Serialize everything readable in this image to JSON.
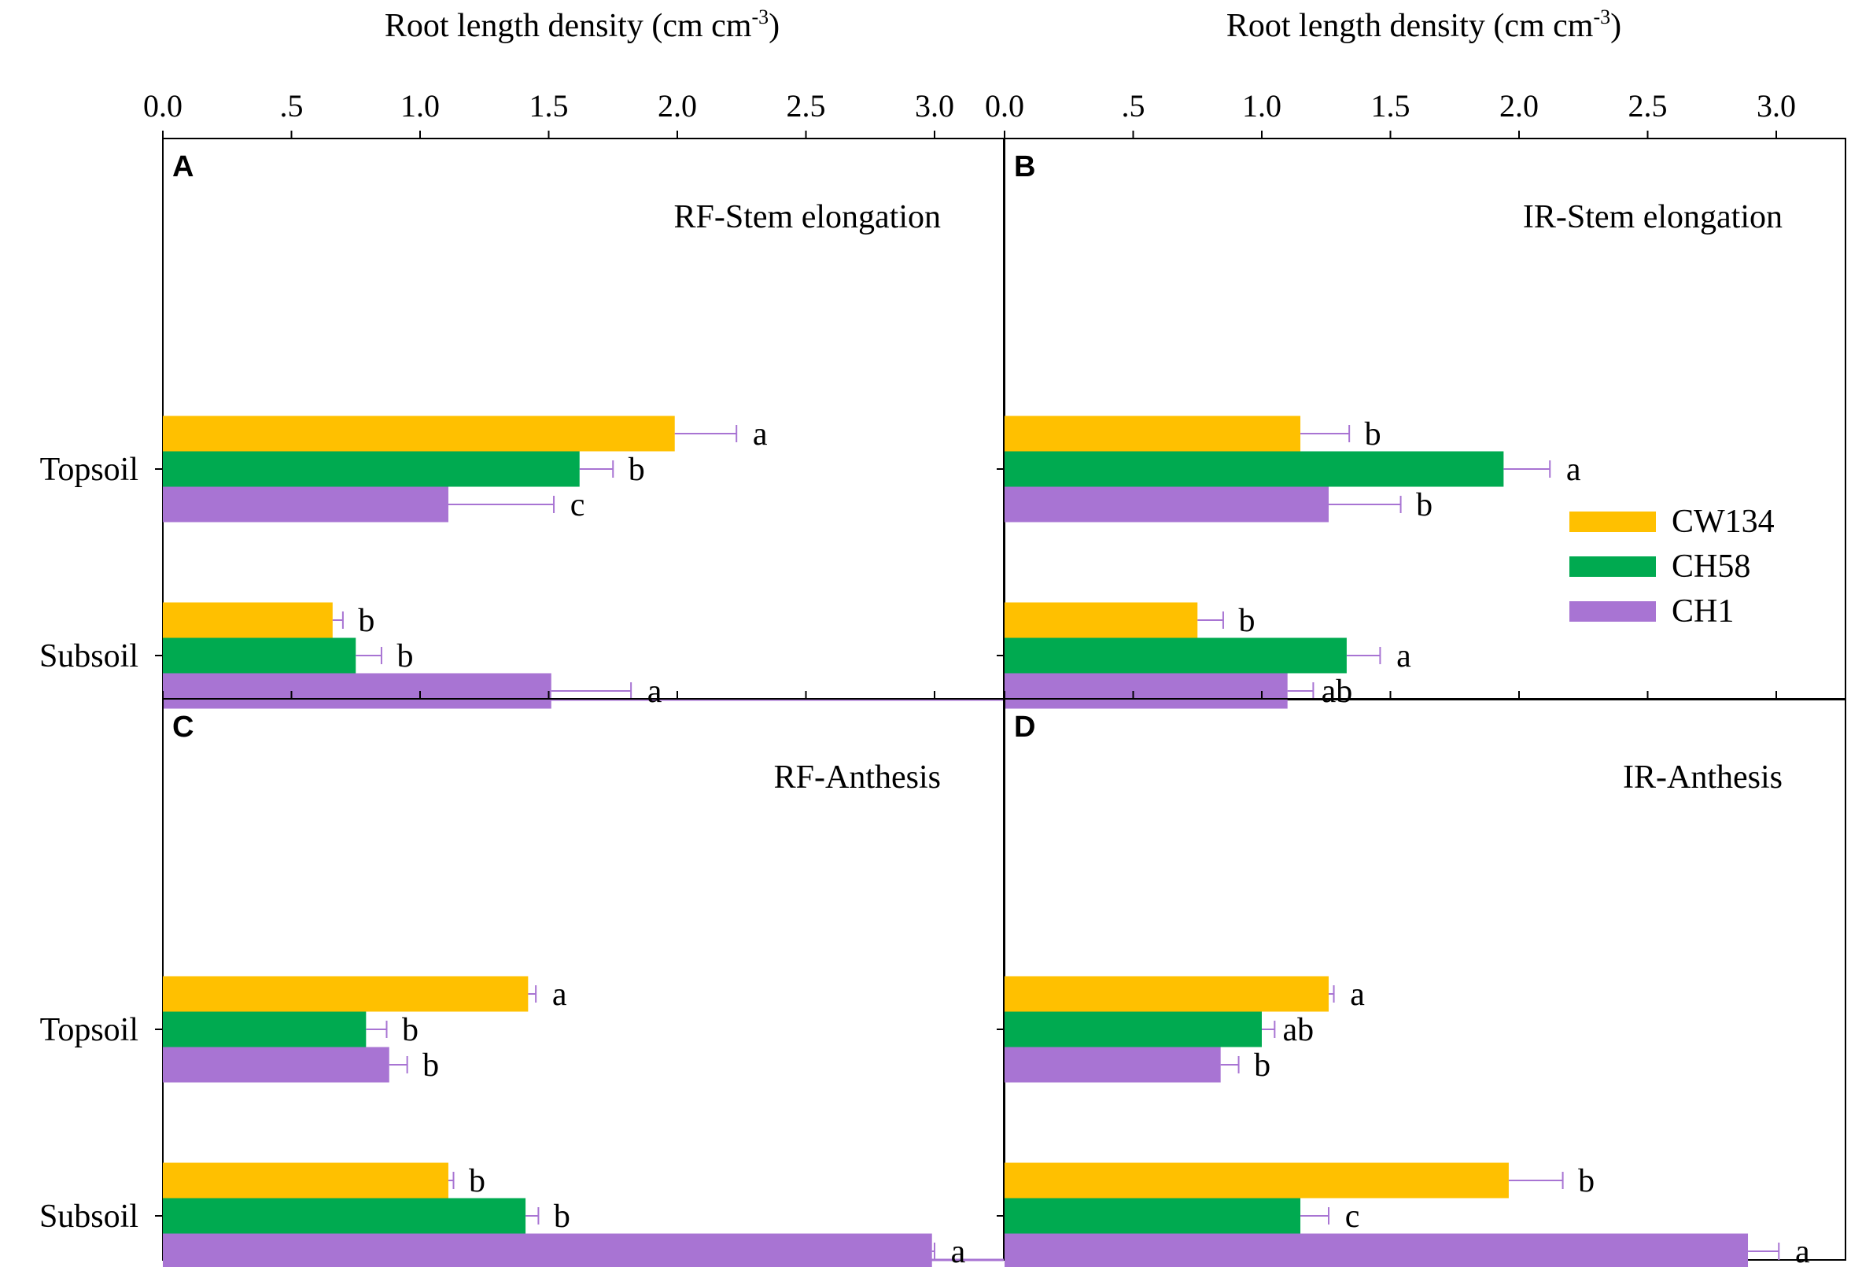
{
  "chart_data": {
    "type": "bar",
    "orientation": "horizontal",
    "x_axis_label_base": "Root length density (cm cm",
    "x_axis_label_sup": "-3",
    "x_axis_label_close": ")",
    "x_tick_labels": [
      "0.0",
      ".5",
      "1.0",
      "1.5",
      "2.0",
      "2.5",
      "3.0"
    ],
    "xlim": [
      0,
      3.25
    ],
    "categories": [
      "Topsoil",
      "Subsoil"
    ],
    "legend": [
      {
        "name": "CW134",
        "color": "#FFC000"
      },
      {
        "name": "CH58",
        "color": "#00AA50"
      },
      {
        "name": "CH1",
        "color": "#A874D3"
      }
    ],
    "error_bar_color": "#A874D3",
    "panels": [
      {
        "letter": "A",
        "title": "RF-Stem elongation",
        "values": [
          [
            1.99,
            1.62,
            1.11
          ],
          [
            0.66,
            0.75,
            1.51
          ]
        ],
        "errors": [
          [
            0.24,
            0.13,
            0.41
          ],
          [
            0.04,
            0.1,
            0.31
          ]
        ],
        "letters": [
          [
            "a",
            "b",
            "c"
          ],
          [
            "b",
            "b",
            "a"
          ]
        ]
      },
      {
        "letter": "B",
        "title": "IR-Stem elongation",
        "values": [
          [
            1.15,
            1.94,
            1.26
          ],
          [
            0.75,
            1.33,
            1.1
          ]
        ],
        "errors": [
          [
            0.19,
            0.18,
            0.28
          ],
          [
            0.1,
            0.13,
            0.1
          ]
        ],
        "letters": [
          [
            "b",
            "a",
            "b"
          ],
          [
            "b",
            "a",
            "ab"
          ]
        ]
      },
      {
        "letter": "C",
        "title": "RF-Anthesis",
        "values": [
          [
            1.42,
            0.79,
            0.88
          ],
          [
            1.11,
            1.41,
            2.99
          ]
        ],
        "errors": [
          [
            0.03,
            0.08,
            0.07
          ],
          [
            0.02,
            0.05,
            0.01
          ]
        ],
        "letters": [
          [
            "a",
            "b",
            "b"
          ],
          [
            "b",
            "b",
            "a"
          ]
        ]
      },
      {
        "letter": "D",
        "title": "IR-Anthesis",
        "values": [
          [
            1.26,
            1.0,
            0.84
          ],
          [
            1.96,
            1.15,
            2.89
          ]
        ],
        "errors": [
          [
            0.02,
            0.05,
            0.07
          ],
          [
            0.21,
            0.11,
            0.12
          ]
        ],
        "letters": [
          [
            "a",
            "ab",
            "b"
          ],
          [
            "b",
            "c",
            "a"
          ]
        ]
      }
    ]
  }
}
